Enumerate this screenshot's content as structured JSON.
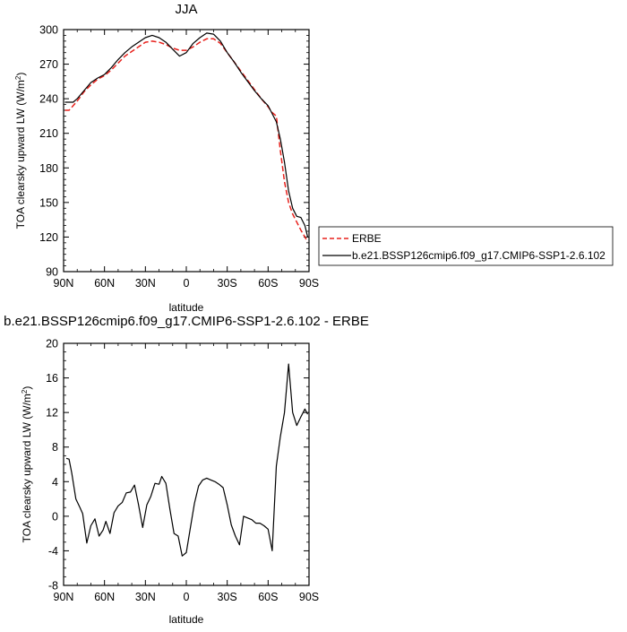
{
  "chart_data": [
    {
      "type": "line",
      "title": "JJA",
      "xlabel": "latitude",
      "ylabel_main": "TOA clearsky upward LW (W/m",
      "ylabel_sup": "2",
      "ylabel_end": ")",
      "xlim": [
        90,
        -90
      ],
      "ylim": [
        90,
        300
      ],
      "x_ticks": [
        90,
        60,
        30,
        0,
        -30,
        -60,
        -90
      ],
      "x_tick_labels": [
        "90N",
        "60N",
        "30N",
        "0",
        "30S",
        "60S",
        "90S"
      ],
      "y_ticks": [
        90,
        120,
        150,
        180,
        210,
        240,
        270,
        300
      ],
      "y_tick_labels": [
        "90",
        "120",
        "150",
        "180",
        "210",
        "240",
        "270",
        "300"
      ],
      "legend_position": "right",
      "series": [
        {
          "name": "ERBE",
          "color": "#e8221d",
          "dash": true,
          "x": [
            89,
            86,
            83,
            80,
            75,
            70,
            65,
            60,
            55,
            50,
            45,
            40,
            35,
            30,
            25,
            20,
            15,
            10,
            5,
            0,
            -5,
            -10,
            -15,
            -20,
            -25,
            -30,
            -35,
            -40,
            -45,
            -50,
            -55,
            -60,
            -63,
            -66,
            -69,
            -72,
            -75,
            -78,
            -81,
            -84,
            -87,
            -89
          ],
          "y": [
            230,
            230,
            234,
            238,
            246,
            252,
            257,
            260,
            265,
            271,
            277,
            281,
            285,
            289,
            290,
            289,
            287,
            284,
            282,
            282,
            285,
            289,
            292,
            292,
            288,
            280,
            272,
            264,
            256,
            248,
            240,
            233,
            228,
            225,
            195,
            168,
            150,
            140,
            133,
            126,
            120,
            116
          ]
        },
        {
          "name": "b.e21.BSSP126cmip6.f09_g17.CMIP6-SSP1-2.6.102",
          "color": "#000000",
          "dash": false,
          "x": [
            89,
            86,
            83,
            80,
            75,
            70,
            65,
            60,
            55,
            50,
            45,
            40,
            35,
            30,
            25,
            20,
            15,
            10,
            5,
            0,
            -5,
            -10,
            -15,
            -20,
            -25,
            -30,
            -35,
            -40,
            -45,
            -50,
            -55,
            -60,
            -63,
            -66,
            -69,
            -72,
            -75,
            -78,
            -81,
            -84,
            -87,
            -89
          ],
          "y": [
            237,
            237,
            237,
            240,
            247,
            254,
            258,
            261,
            267,
            274,
            280,
            285,
            289,
            293,
            295,
            293,
            289,
            283,
            277,
            280,
            288,
            293,
            297,
            296,
            290,
            280,
            272,
            263,
            255,
            247,
            240,
            234,
            227,
            220,
            205,
            185,
            160,
            145,
            138,
            137,
            130,
            120
          ]
        }
      ]
    },
    {
      "type": "line",
      "title": "b.e21.BSSP126cmip6.f09_g17.CMIP6-SSP1-2.6.102 - ERBE",
      "xlabel": "latitude",
      "ylabel_main": "TOA clearsky upward LW (W/m",
      "ylabel_sup": "2",
      "ylabel_end": ")",
      "xlim": [
        90,
        -90
      ],
      "ylim": [
        -8,
        20
      ],
      "x_ticks": [
        90,
        60,
        30,
        0,
        -30,
        -60,
        -90
      ],
      "x_tick_labels": [
        "90N",
        "60N",
        "30N",
        "0",
        "30S",
        "60S",
        "90S"
      ],
      "y_ticks": [
        -8,
        -4,
        0,
        4,
        8,
        12,
        16,
        20
      ],
      "y_tick_labels": [
        "-8",
        "-4",
        "0",
        "4",
        "8",
        "12",
        "16",
        "20"
      ],
      "series": [
        {
          "color": "#000000",
          "x": [
            88,
            86,
            84,
            81,
            78,
            76,
            73,
            70,
            67,
            64,
            61,
            59,
            56,
            53,
            50,
            47,
            44,
            41,
            38,
            35,
            32,
            29,
            26,
            23,
            20,
            18,
            15,
            12,
            9,
            6,
            3,
            0,
            -3,
            -6,
            -9,
            -12,
            -15,
            -18,
            -21,
            -24,
            -27,
            -30,
            -33,
            -36,
            -39,
            -42,
            -45,
            -48,
            -51,
            -54,
            -57,
            -60,
            -63,
            -66,
            -69,
            -72,
            -75,
            -78,
            -81,
            -84,
            -87,
            -89
          ],
          "y": [
            6.7,
            6.6,
            5.0,
            2.0,
            1.0,
            0.3,
            -3.1,
            -1.1,
            -0.3,
            -2.3,
            -1.6,
            -0.6,
            -2.0,
            0.4,
            1.2,
            1.6,
            2.7,
            2.8,
            3.6,
            1.3,
            -1.3,
            1.3,
            2.3,
            3.8,
            3.7,
            4.6,
            3.8,
            0.8,
            -2.0,
            -2.3,
            -4.6,
            -4.2,
            -1.3,
            1.5,
            3.5,
            4.2,
            4.4,
            4.2,
            4.0,
            3.7,
            3.3,
            1.3,
            -1.0,
            -2.3,
            -3.3,
            0.0,
            -0.2,
            -0.4,
            -0.8,
            -0.8,
            -1.1,
            -1.5,
            -4.0,
            5.8,
            9.2,
            12.0,
            17.6,
            12.0,
            10.5,
            11.5,
            12.4,
            11.8
          ]
        }
      ]
    }
  ]
}
